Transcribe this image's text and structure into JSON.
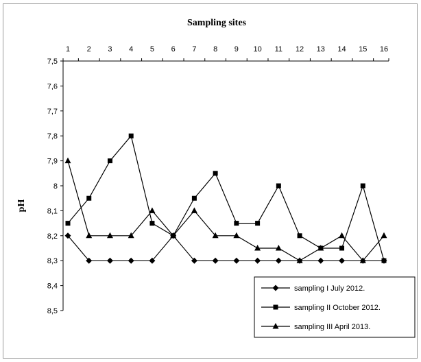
{
  "chart_data": {
    "type": "line",
    "title": "",
    "xlabel": "Sampling sites",
    "ylabel": "pH",
    "x_axis_position": "top",
    "y_axis_inverted": true,
    "grid": false,
    "legend_position": "bottom-right",
    "categories": [
      "1",
      "2",
      "3",
      "4",
      "5",
      "6",
      "7",
      "8",
      "9",
      "10",
      "11",
      "12",
      "13",
      "14",
      "15",
      "16"
    ],
    "ylim": [
      7.5,
      8.5
    ],
    "yticks": [
      "7,5",
      "7,6",
      "7,7",
      "7,8",
      "7,9",
      "8",
      "8,1",
      "8,2",
      "8,3",
      "8,4",
      "8,5"
    ],
    "series": [
      {
        "name": "sampling I July 2012.",
        "marker": "diamond",
        "values": [
          8.2,
          8.3,
          8.3,
          8.3,
          8.3,
          8.2,
          8.3,
          8.3,
          8.3,
          8.3,
          8.3,
          8.3,
          8.3,
          8.3,
          8.3,
          8.3
        ]
      },
      {
        "name": "sampling II October 2012.",
        "marker": "square",
        "values": [
          8.15,
          8.05,
          7.9,
          7.8,
          8.15,
          8.2,
          8.05,
          7.95,
          8.15,
          8.15,
          8.0,
          8.2,
          8.25,
          8.25,
          8.0,
          8.3
        ]
      },
      {
        "name": "sampling III April 2013.",
        "marker": "triangle",
        "values": [
          7.9,
          8.2,
          8.2,
          8.2,
          8.1,
          8.2,
          8.1,
          8.2,
          8.2,
          8.25,
          8.25,
          8.3,
          8.25,
          8.2,
          8.3,
          8.2
        ]
      }
    ],
    "colors": {
      "line": "#000000",
      "frame": "#9a9a9a"
    }
  }
}
